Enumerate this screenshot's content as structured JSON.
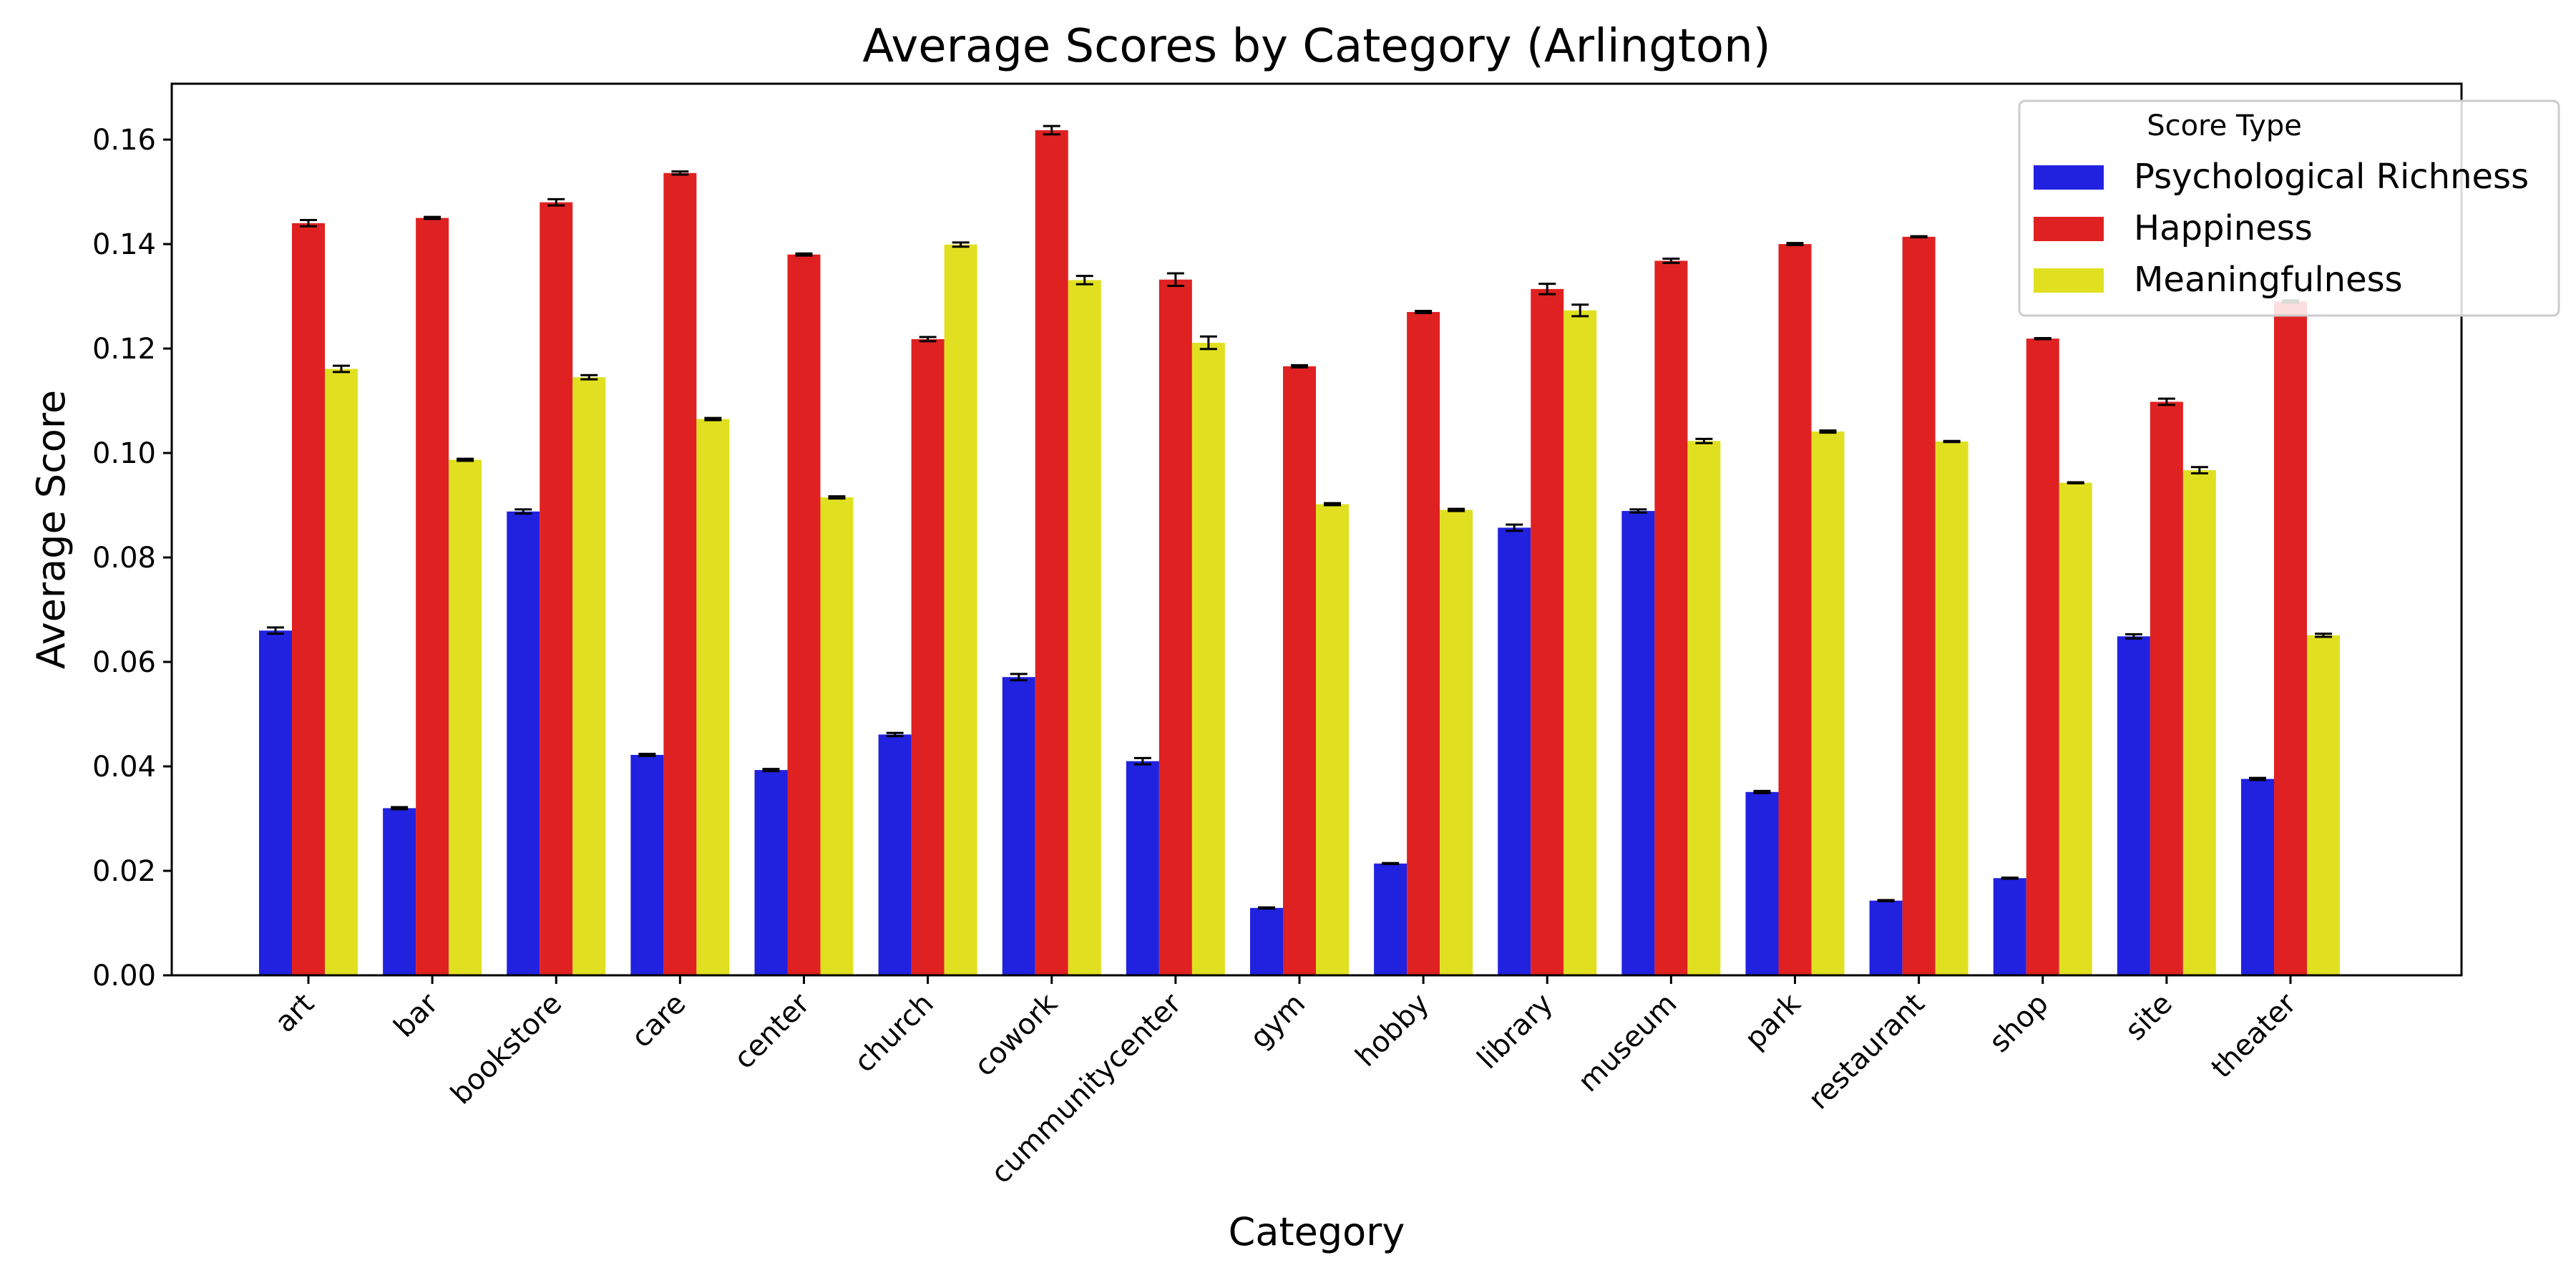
{
  "chart_data": {
    "type": "bar",
    "title": "Average Scores by Category (Arlington)",
    "xlabel": "Category",
    "ylabel": "Average Score",
    "ylim": [
      0,
      0.1707
    ],
    "yticks": [
      "0.00",
      "0.02",
      "0.04",
      "0.06",
      "0.08",
      "0.10",
      "0.12",
      "0.14",
      "0.16"
    ],
    "grid": false,
    "legend": {
      "title": "Score Type",
      "placement": "top-right"
    },
    "categories": [
      "art",
      "bar",
      "bookstore",
      "care",
      "center",
      "church",
      "cowork",
      "cummunitycenter",
      "gym",
      "hobby",
      "library",
      "museum",
      "park",
      "restaurant",
      "shop",
      "site",
      "theater"
    ],
    "series": [
      {
        "name": "Psychological Richness",
        "color": "#2121e0",
        "values": [
          0.066,
          0.032,
          0.0888,
          0.0422,
          0.0393,
          0.0461,
          0.0571,
          0.041,
          0.0129,
          0.0214,
          0.0857,
          0.0889,
          0.0351,
          0.0143,
          0.0186,
          0.0649,
          0.0376
        ],
        "errors": [
          0.0006,
          0.0002,
          0.0004,
          0.0002,
          0.0002,
          0.0003,
          0.0006,
          0.0006,
          0.0001,
          0.0001,
          0.0006,
          0.0003,
          0.0002,
          0.0001,
          0.0001,
          0.0004,
          0.0002
        ]
      },
      {
        "name": "Happiness",
        "color": "#e02121",
        "values": [
          0.144,
          0.145,
          0.148,
          0.1536,
          0.138,
          0.1218,
          0.1618,
          0.1332,
          0.1166,
          0.127,
          0.1314,
          0.1368,
          0.14,
          0.1414,
          0.1219,
          0.1098,
          0.129
        ],
        "errors": [
          0.0006,
          0.0002,
          0.0006,
          0.0003,
          0.0002,
          0.0004,
          0.0008,
          0.0012,
          0.0002,
          0.0002,
          0.001,
          0.0004,
          0.0002,
          0.0001,
          0.0001,
          0.0006,
          0.0002
        ]
      },
      {
        "name": "Meaningfulness",
        "color": "#e0e021",
        "values": [
          0.1161,
          0.0987,
          0.1145,
          0.1065,
          0.0915,
          0.1399,
          0.1331,
          0.1211,
          0.0902,
          0.0891,
          0.1273,
          0.1023,
          0.1041,
          0.1022,
          0.0943,
          0.0967,
          0.0651
        ],
        "errors": [
          0.0006,
          0.0002,
          0.0004,
          0.0002,
          0.0002,
          0.0004,
          0.0008,
          0.0012,
          0.0002,
          0.0002,
          0.0011,
          0.0004,
          0.0002,
          0.0001,
          0.0001,
          0.0006,
          0.0003
        ]
      }
    ]
  }
}
